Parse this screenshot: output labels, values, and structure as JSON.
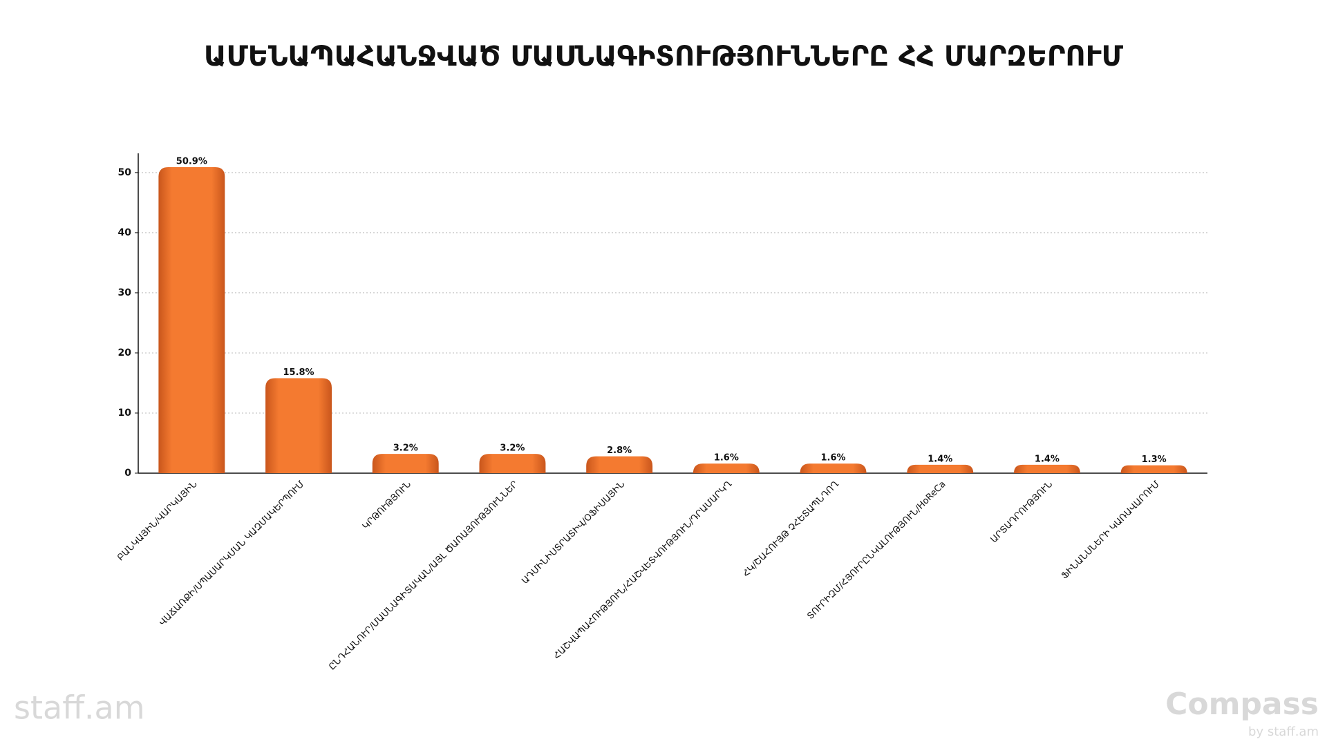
{
  "chart_data": {
    "type": "bar",
    "title": "ԱՄԵՆԱՊԱՀԱՆՋՎԱԾ ՄԱՍՆԱԳԻՏՈՒԹՅՈՒՆՆԵՐԸ ՀՀ ՄԱՐԶԵՐՈՒՄ",
    "categories": [
      "ԲԱՆԿԱՅԻՆ/ՎԱՐԿԱՅԻՆ",
      "ՎԱՃԱՌՔԻ/ՍՊԱՍԱՐԿՄԱՆ ԿԱԶՄԱԿԵՐՊՈՒՄ",
      "ԿՐԹՈՒԹՅՈՒՆ",
      "ԸՆԴՀԱՆՈՒՐ/ՄԱՍՆԱԳԻՏԱԿԱՆ/ԱՅԼ ԾԱՌԱՅՈՒԹՅՈՒՆՆԵՐ",
      "ԱԴՄԻՆԻՍՏՐԱՏԻՎ/ՕՖԻՍԱՅԻՆ",
      "ՀԱՇՎԱՊԱՀՈՒԹՅՈՒՆ/ՀԱՇՎԵՏՎՈՒԹՅՈՒՆ/ԴՐԱՄԱՐԿՂ",
      "ՀԿ/ՇԱՀՈՒՅԹ ՉՀԵՏԱՊՆԴՈՂ",
      "ՏՈՒՐԻԶՄ/ՀՅՈՒՐԸՆԿԱԼՈՒԹՅՈՒՆ/HoReCa",
      "ԱՐՏԱԴՐՈՒԹՅՈՒՆ",
      "ՖԻՆԱՆՍՆԵՐԻ ԿԱՌԱՎԱՐՈՒՄ"
    ],
    "values": [
      50.9,
      15.8,
      3.2,
      3.2,
      2.8,
      1.6,
      1.6,
      1.4,
      1.4,
      1.3
    ],
    "value_labels": [
      "50.9%",
      "15.8%",
      "3.2%",
      "3.2%",
      "2.8%",
      "1.6%",
      "1.6%",
      "1.4%",
      "1.4%",
      "1.3%"
    ],
    "color": "#f47a30",
    "ylim": [
      0,
      53.2
    ],
    "yticks": [
      0,
      10,
      20,
      30,
      40,
      50
    ],
    "grid": true
  },
  "logos": {
    "left": "staff.am",
    "right": "Compass",
    "right_sub": "by staff.am"
  }
}
